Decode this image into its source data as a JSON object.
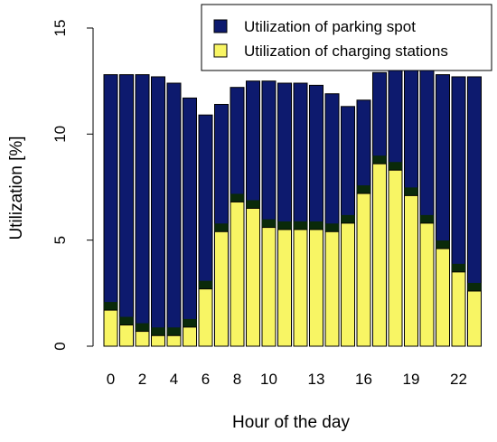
{
  "chart_data": {
    "type": "bar",
    "stacked": false,
    "overlay": true,
    "xlabel": "Hour of the day",
    "ylabel": "Utilization [%]",
    "ylim": [
      0,
      15
    ],
    "yticks": [
      0,
      5,
      10,
      15
    ],
    "x": [
      0,
      1,
      2,
      3,
      4,
      5,
      6,
      7,
      8,
      9,
      10,
      11,
      12,
      13,
      14,
      15,
      16,
      17,
      18,
      19,
      20,
      21,
      22,
      23
    ],
    "xtick_labels": [
      "0",
      "",
      "2",
      "",
      "4",
      "",
      "6",
      "",
      "8",
      "",
      "10",
      "",
      "",
      "13",
      "",
      "",
      "16",
      "",
      "",
      "19",
      "",
      "",
      "22",
      ""
    ],
    "grid": false,
    "legend_position": "top-right",
    "series": [
      {
        "name": "Utilization of parking spot",
        "color": "#0d1a6e",
        "values": [
          12.8,
          12.8,
          12.8,
          12.7,
          12.4,
          11.7,
          10.9,
          11.4,
          12.2,
          12.5,
          12.5,
          12.4,
          12.4,
          12.3,
          11.9,
          11.3,
          11.6,
          12.9,
          13.2,
          13.3,
          13.1,
          12.8,
          12.7,
          12.7
        ]
      },
      {
        "name": "Utilization of charging stations",
        "color": "#f8f564",
        "values": [
          1.7,
          1.0,
          0.7,
          0.5,
          0.5,
          0.9,
          2.7,
          5.4,
          6.8,
          6.5,
          5.6,
          5.5,
          5.5,
          5.5,
          5.4,
          5.8,
          7.2,
          8.6,
          8.3,
          7.1,
          5.8,
          4.6,
          3.5,
          2.6
        ]
      }
    ]
  },
  "colors": {
    "dark_band": "#0a2a0a",
    "bar_outline": "#000000"
  }
}
